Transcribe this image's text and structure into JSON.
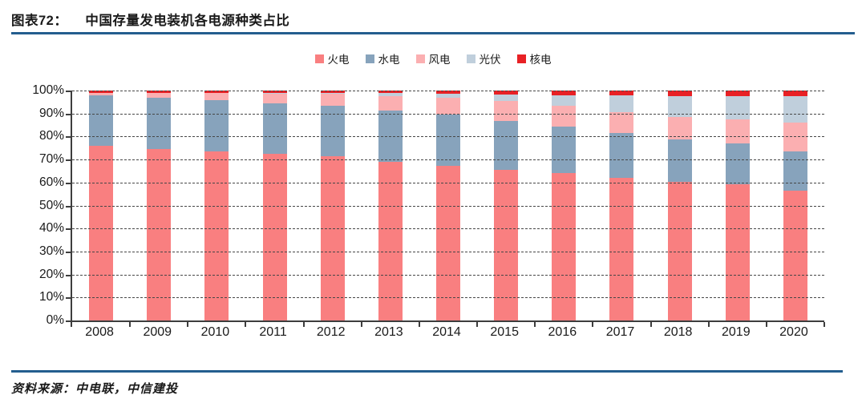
{
  "header": {
    "figure_label": "图表72：",
    "title": "中国存量发电装机各电源种类占比"
  },
  "footer": {
    "source": "资料来源：中电联，中信建投"
  },
  "colors": {
    "rule_blue": "#245E8E",
    "axis": "#3d3d3d",
    "grid": "#474747",
    "thermal": "#F97F80",
    "hydro": "#87A3BC",
    "wind": "#FBAFB1",
    "solar": "#C0CFDC",
    "nuclear": "#E82125"
  },
  "chart_data": {
    "type": "bar",
    "stacked": true,
    "unit": "%",
    "title": "中国存量发电装机各电源种类占比",
    "xlabel": "",
    "ylabel": "",
    "ylim": [
      0,
      100
    ],
    "ytick_step": 10,
    "ytick_suffix": "%",
    "grid": "horizontal-dashed",
    "legend_position": "top-center",
    "categories": [
      "2008",
      "2009",
      "2010",
      "2011",
      "2012",
      "2013",
      "2014",
      "2015",
      "2016",
      "2017",
      "2018",
      "2019",
      "2020"
    ],
    "series": [
      {
        "name": "火电",
        "key": "thermal",
        "color": "#F97F80",
        "values": [
          76.0,
          74.5,
          73.4,
          72.4,
          71.6,
          68.9,
          67.4,
          65.6,
          64.0,
          62.2,
          60.2,
          59.3,
          56.6
        ]
      },
      {
        "name": "水电",
        "key": "hydro",
        "color": "#87A3BC",
        "values": [
          21.8,
          22.5,
          22.4,
          21.9,
          21.7,
          22.5,
          22.3,
          21.2,
          20.2,
          19.3,
          18.5,
          17.7,
          16.8
        ]
      },
      {
        "name": "风电",
        "key": "wind",
        "color": "#FBAFB1",
        "values": [
          1.1,
          2.0,
          3.1,
          4.3,
          5.3,
          6.1,
          7.0,
          8.6,
          9.1,
          9.2,
          9.7,
          10.4,
          12.8
        ]
      },
      {
        "name": "光伏",
        "key": "solar",
        "color": "#C0CFDC",
        "values": [
          0.0,
          0.0,
          0.0,
          0.2,
          0.3,
          1.3,
          1.8,
          2.9,
          4.7,
          7.3,
          9.2,
          10.2,
          11.5
        ]
      },
      {
        "name": "核电",
        "key": "nuclear",
        "color": "#E82125",
        "values": [
          1.1,
          1.0,
          1.1,
          1.2,
          1.1,
          1.2,
          1.5,
          1.7,
          2.0,
          2.0,
          2.4,
          2.4,
          2.3
        ]
      }
    ]
  }
}
